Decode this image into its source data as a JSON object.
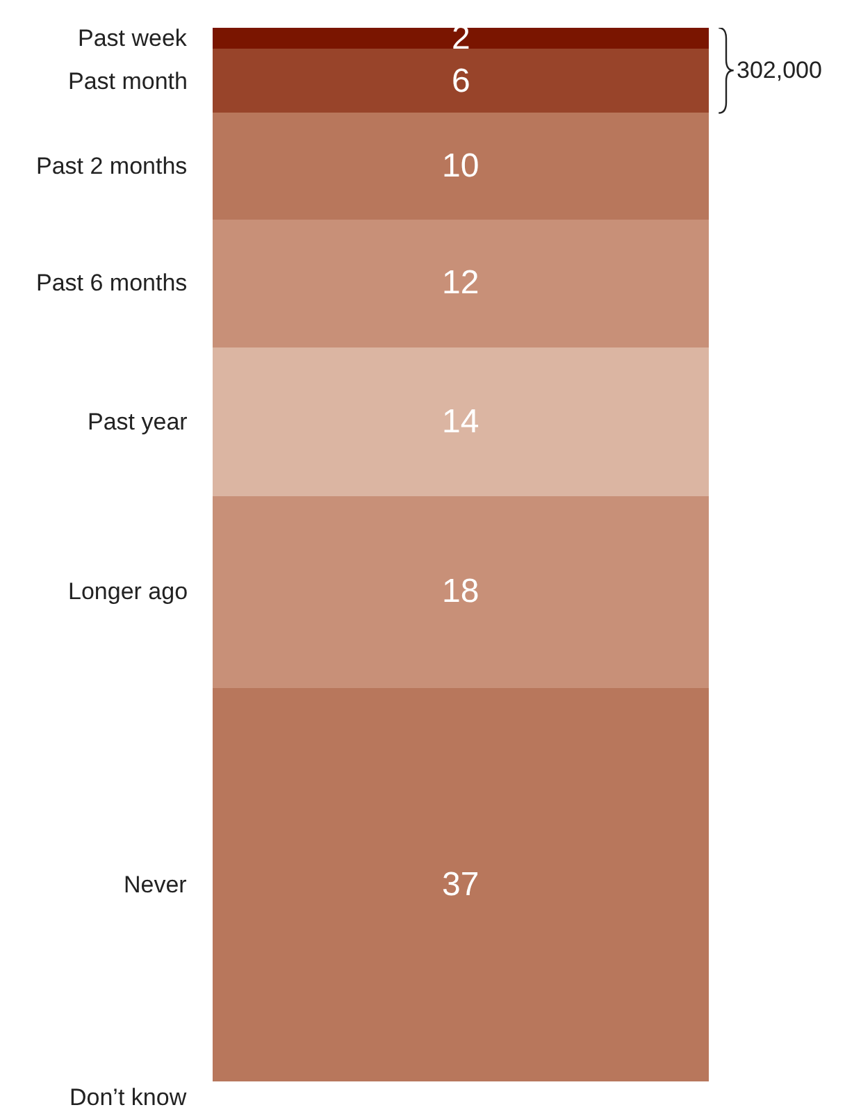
{
  "chart_data": {
    "type": "bar",
    "stacked": true,
    "categories": [
      null
    ],
    "ylim": [
      0,
      99
    ],
    "tick_labels": false,
    "legend": false,
    "data_labels": true,
    "series": [
      {
        "name": "Never",
        "color": "#b8775c",
        "values": [
          37
        ]
      },
      {
        "name": "Longer ago",
        "color": "#c89078",
        "values": [
          18
        ]
      },
      {
        "name": "Past year",
        "color": "#dbb5a2",
        "values": [
          14
        ]
      },
      {
        "name": "Past 6 months",
        "color": "#c89078",
        "values": [
          12
        ]
      },
      {
        "name": "Past 2 months",
        "color": "#b8775c",
        "values": [
          10
        ]
      },
      {
        "name": "Past month",
        "color": "#98442a",
        "values": [
          6
        ]
      },
      {
        "name": "Past week",
        "color": "#7a1500",
        "values": [
          2
        ]
      }
    ],
    "annotations": [
      "302,000",
      "Don’t know"
    ]
  }
}
